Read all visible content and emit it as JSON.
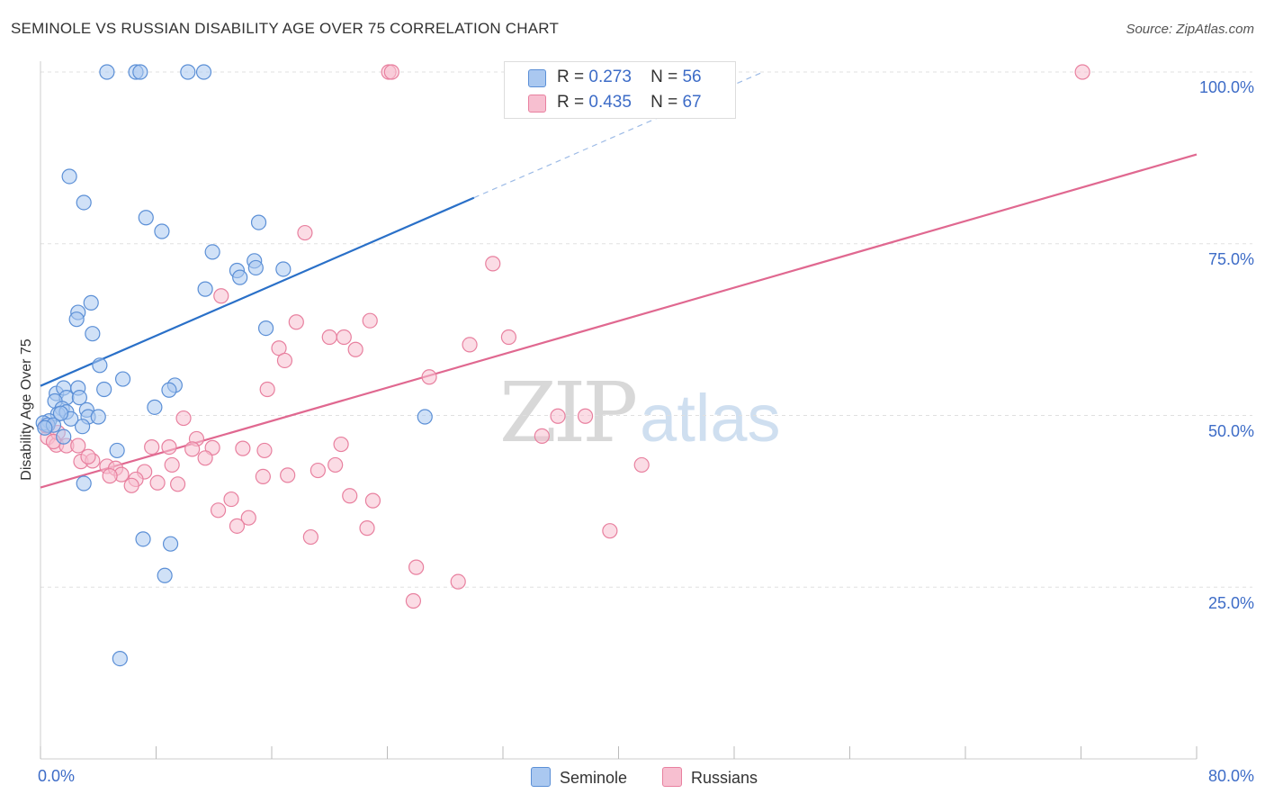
{
  "title": "SEMINOLE VS RUSSIAN DISABILITY AGE OVER 75 CORRELATION CHART",
  "source": "Source: ZipAtlas.com",
  "watermark": {
    "zip": "ZIP",
    "atlas": "atlas"
  },
  "legend_top": {
    "series1": {
      "r_label": "R =",
      "r_value": "0.273",
      "n_label": "N =",
      "n_value": "56"
    },
    "series2": {
      "r_label": "R =",
      "r_value": "0.435",
      "n_label": "N =",
      "n_value": "67"
    }
  },
  "legend_bottom": {
    "series1": "Seminole",
    "series2": "Russians"
  },
  "colors": {
    "seminole_fill": "#aac8f0",
    "seminole_stroke": "#5b8fd6",
    "seminole_line": "#2a70c8",
    "russians_fill": "#f7bfd0",
    "russians_stroke": "#e8809f",
    "russians_line": "#e06890",
    "axis_text": "#3d6cc7",
    "grid": "#e0e0e0"
  },
  "chart_data": {
    "type": "scatter",
    "title": "SEMINOLE VS RUSSIAN DISABILITY AGE OVER 75 CORRELATION CHART",
    "xlabel": "",
    "ylabel": "Disability Age Over 75",
    "xlim": [
      0,
      80
    ],
    "ylim": [
      0,
      100
    ],
    "x_tick_labels": [
      "0.0%",
      "80.0%"
    ],
    "y_tick_labels": [
      "100.0%",
      "75.0%",
      "50.0%",
      "25.0%"
    ],
    "y_ticks": [
      100,
      75,
      50,
      25
    ],
    "series": [
      {
        "name": "Seminole",
        "R": 0.273,
        "N": 56,
        "points": [
          [
            4.6,
            100
          ],
          [
            6.6,
            100
          ],
          [
            6.9,
            100
          ],
          [
            10.2,
            100
          ],
          [
            11.3,
            100
          ],
          [
            2.0,
            84.8
          ],
          [
            3.0,
            81.0
          ],
          [
            7.3,
            78.8
          ],
          [
            8.4,
            76.8
          ],
          [
            15.1,
            78.1
          ],
          [
            11.9,
            73.8
          ],
          [
            14.8,
            72.5
          ],
          [
            13.6,
            71.1
          ],
          [
            14.9,
            71.5
          ],
          [
            16.8,
            71.3
          ],
          [
            13.8,
            70.1
          ],
          [
            11.4,
            68.4
          ],
          [
            3.5,
            66.4
          ],
          [
            2.6,
            65.0
          ],
          [
            2.5,
            64.0
          ],
          [
            15.6,
            62.7
          ],
          [
            3.6,
            61.9
          ],
          [
            4.1,
            57.3
          ],
          [
            5.7,
            55.3
          ],
          [
            9.3,
            54.4
          ],
          [
            4.4,
            53.8
          ],
          [
            8.9,
            53.7
          ],
          [
            1.1,
            53.2
          ],
          [
            1.6,
            54.0
          ],
          [
            2.6,
            54.0
          ],
          [
            1.8,
            52.6
          ],
          [
            2.7,
            52.6
          ],
          [
            1.0,
            52.1
          ],
          [
            7.9,
            51.2
          ],
          [
            1.5,
            51.0
          ],
          [
            3.2,
            50.8
          ],
          [
            1.2,
            50.2
          ],
          [
            3.3,
            49.8
          ],
          [
            4.0,
            49.8
          ],
          [
            0.6,
            49.2
          ],
          [
            0.2,
            48.9
          ],
          [
            0.5,
            48.6
          ],
          [
            2.9,
            48.4
          ],
          [
            26.6,
            49.8
          ],
          [
            1.6,
            46.9
          ],
          [
            5.3,
            44.9
          ],
          [
            3.0,
            40.1
          ],
          [
            7.1,
            32.0
          ],
          [
            9.0,
            31.3
          ],
          [
            8.6,
            26.7
          ],
          [
            5.5,
            14.6
          ],
          [
            0.9,
            48.6
          ],
          [
            1.8,
            50.5
          ],
          [
            0.3,
            48.2
          ],
          [
            2.1,
            49.5
          ],
          [
            1.4,
            50.3
          ]
        ]
      },
      {
        "name": "Russians",
        "R": 0.435,
        "N": 67,
        "points": [
          [
            24.1,
            100
          ],
          [
            24.3,
            100
          ],
          [
            72.1,
            100
          ],
          [
            18.3,
            76.6
          ],
          [
            31.3,
            72.1
          ],
          [
            12.5,
            67.4
          ],
          [
            17.7,
            63.6
          ],
          [
            22.8,
            63.8
          ],
          [
            20.0,
            61.4
          ],
          [
            21.0,
            61.4
          ],
          [
            32.4,
            61.4
          ],
          [
            16.5,
            59.8
          ],
          [
            21.8,
            59.6
          ],
          [
            29.7,
            60.3
          ],
          [
            16.9,
            58.0
          ],
          [
            26.9,
            55.6
          ],
          [
            15.7,
            53.8
          ],
          [
            9.9,
            49.6
          ],
          [
            35.8,
            49.9
          ],
          [
            37.7,
            49.9
          ],
          [
            10.8,
            46.6
          ],
          [
            34.7,
            47.0
          ],
          [
            20.8,
            45.8
          ],
          [
            0.5,
            46.8
          ],
          [
            1.1,
            45.7
          ],
          [
            1.8,
            45.6
          ],
          [
            8.9,
            45.4
          ],
          [
            7.7,
            45.4
          ],
          [
            11.9,
            45.3
          ],
          [
            14.0,
            45.2
          ],
          [
            15.5,
            44.9
          ],
          [
            10.5,
            45.1
          ],
          [
            11.4,
            43.8
          ],
          [
            2.8,
            43.3
          ],
          [
            3.6,
            43.4
          ],
          [
            4.6,
            42.6
          ],
          [
            5.2,
            42.3
          ],
          [
            5.6,
            41.4
          ],
          [
            4.8,
            41.2
          ],
          [
            7.2,
            41.8
          ],
          [
            9.1,
            42.8
          ],
          [
            20.4,
            42.8
          ],
          [
            41.6,
            42.8
          ],
          [
            6.6,
            40.7
          ],
          [
            6.3,
            39.8
          ],
          [
            8.1,
            40.2
          ],
          [
            9.5,
            40.0
          ],
          [
            15.4,
            41.1
          ],
          [
            17.1,
            41.3
          ],
          [
            21.4,
            38.3
          ],
          [
            23.0,
            37.6
          ],
          [
            13.2,
            37.8
          ],
          [
            12.3,
            36.2
          ],
          [
            14.4,
            35.1
          ],
          [
            13.6,
            33.9
          ],
          [
            22.6,
            33.6
          ],
          [
            18.7,
            32.3
          ],
          [
            39.4,
            33.2
          ],
          [
            26.0,
            27.9
          ],
          [
            28.9,
            25.8
          ],
          [
            25.8,
            23.0
          ],
          [
            0.4,
            48.5
          ],
          [
            2.6,
            45.6
          ],
          [
            19.2,
            42.0
          ],
          [
            3.3,
            44.0
          ],
          [
            1.2,
            47.5
          ],
          [
            0.9,
            46.2
          ]
        ]
      }
    ],
    "trend_lines": [
      {
        "series": "Seminole",
        "from": [
          0,
          54.3
        ],
        "to": [
          30,
          81.7
        ],
        "dashed_to": [
          50,
          100
        ],
        "style": "solid+dashed"
      },
      {
        "series": "Russians",
        "from": [
          0,
          39.5
        ],
        "to": [
          80,
          88.0
        ],
        "style": "solid"
      }
    ]
  }
}
